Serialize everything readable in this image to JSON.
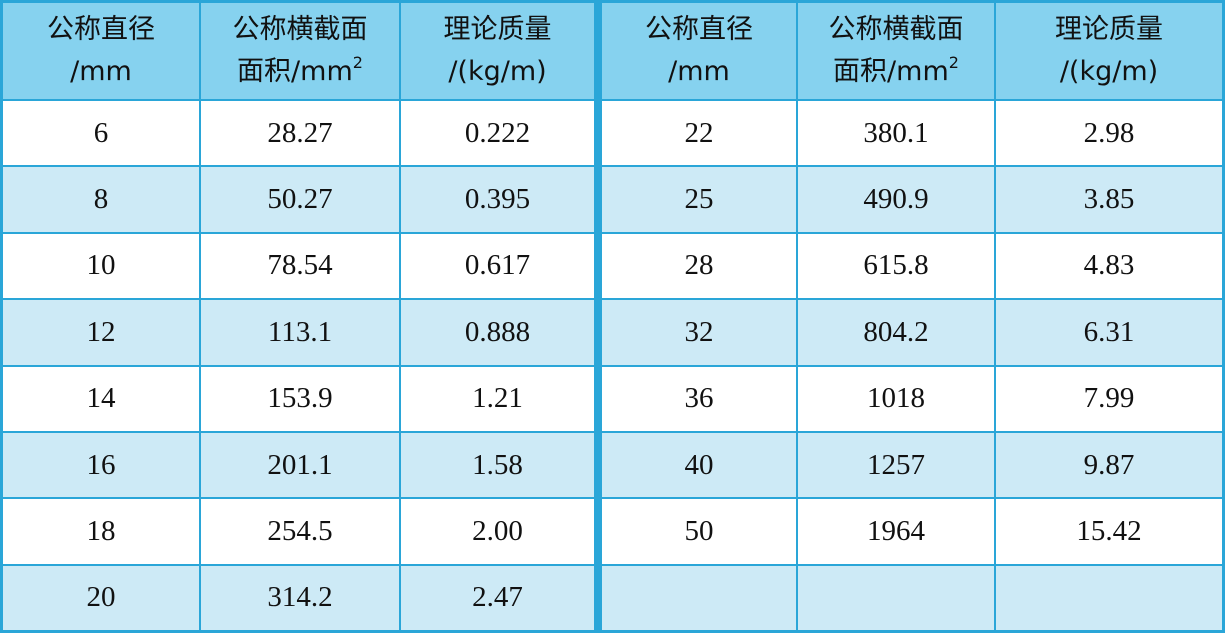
{
  "groups": [
    {
      "header": [
        {
          "lines": [
            "公称直径",
            "/mm"
          ]
        },
        {
          "lines": [
            "公称横截面",
            "面积/mm"
          ],
          "sup": "2"
        },
        {
          "lines": [
            "理论质量",
            "/(kg/m)"
          ]
        }
      ],
      "rows": [
        [
          "6",
          "28.27",
          "0.222"
        ],
        [
          "8",
          "50.27",
          "0.395"
        ],
        [
          "10",
          "78.54",
          "0.617"
        ],
        [
          "12",
          "113.1",
          "0.888"
        ],
        [
          "14",
          "153.9",
          "1.21"
        ],
        [
          "16",
          "201.1",
          "1.58"
        ],
        [
          "18",
          "254.5",
          "2.00"
        ],
        [
          "20",
          "314.2",
          "2.47"
        ]
      ]
    },
    {
      "header": [
        {
          "lines": [
            "公称直径",
            "/mm"
          ]
        },
        {
          "lines": [
            "公称横截面",
            "面积/mm"
          ],
          "sup": "2"
        },
        {
          "lines": [
            "理论质量",
            "/(kg/m)"
          ]
        }
      ],
      "rows": [
        [
          "22",
          "380.1",
          "2.98"
        ],
        [
          "25",
          "490.9",
          "3.85"
        ],
        [
          "28",
          "615.8",
          "4.83"
        ],
        [
          "32",
          "804.2",
          "6.31"
        ],
        [
          "36",
          "1018",
          "7.99"
        ],
        [
          "40",
          "1257",
          "9.87"
        ],
        [
          "50",
          "1964",
          "15.42"
        ]
      ]
    }
  ]
}
